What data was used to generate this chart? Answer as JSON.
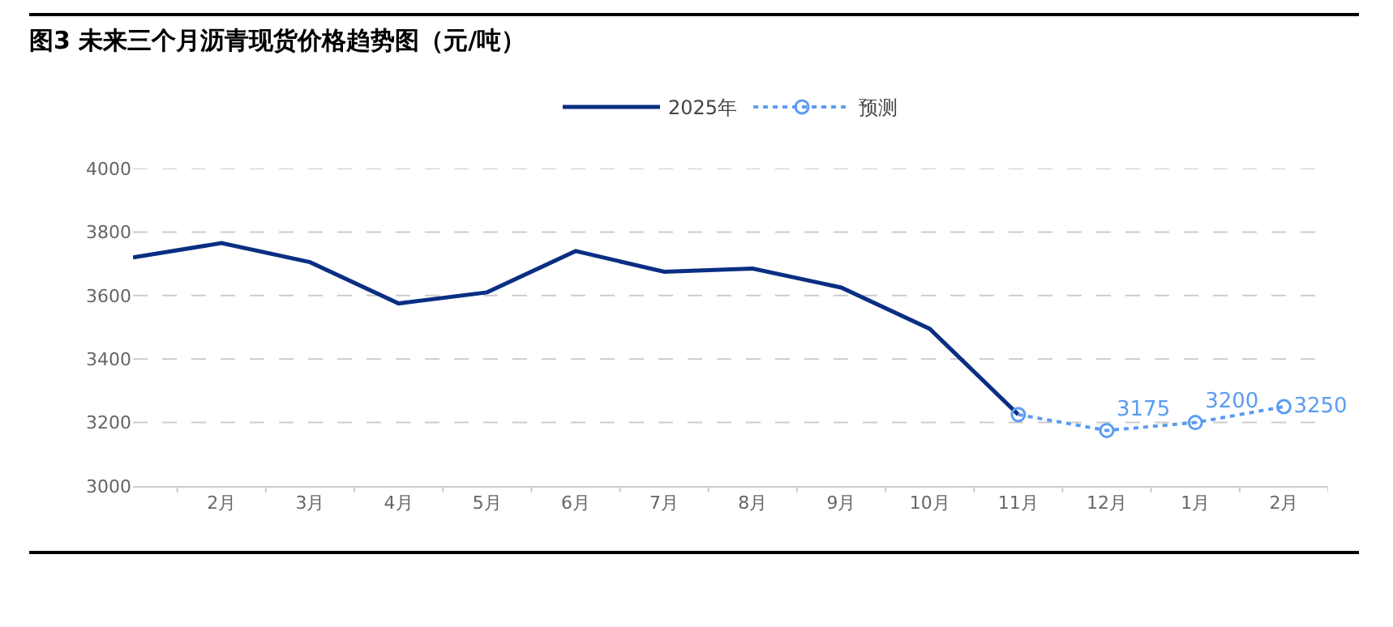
{
  "chart_data": {
    "type": "line",
    "title": "图3  未来三个月沥青现货价格趋势图（元/吨）",
    "categories": [
      null,
      "2月",
      "3月",
      "4月",
      "5月",
      "6月",
      "7月",
      "8月",
      "9月",
      "10月",
      "11月",
      "12月",
      "1月",
      "2月"
    ],
    "series": [
      {
        "name": "2025年",
        "color": "#0a2e83",
        "marker": "none",
        "line_style": "solid",
        "values": [
          3720,
          3765,
          3705,
          3575,
          3610,
          3740,
          3675,
          3685,
          3625,
          3495,
          3225,
          null,
          null,
          null
        ]
      },
      {
        "name": "预测",
        "color": "#5b9cf2",
        "marker": "circle",
        "line_style": "dotted",
        "values": [
          null,
          null,
          null,
          null,
          null,
          null,
          null,
          null,
          null,
          null,
          3225,
          3175,
          3200,
          3250
        ],
        "value_labels": [
          null,
          null,
          null,
          null,
          null,
          null,
          null,
          null,
          null,
          null,
          null,
          "3175",
          "3200",
          "3250"
        ]
      }
    ],
    "ylim": [
      3000,
      4000
    ],
    "yticks": [
      3000,
      3200,
      3400,
      3600,
      3800,
      4000
    ],
    "grid": "y",
    "legend": "top"
  }
}
